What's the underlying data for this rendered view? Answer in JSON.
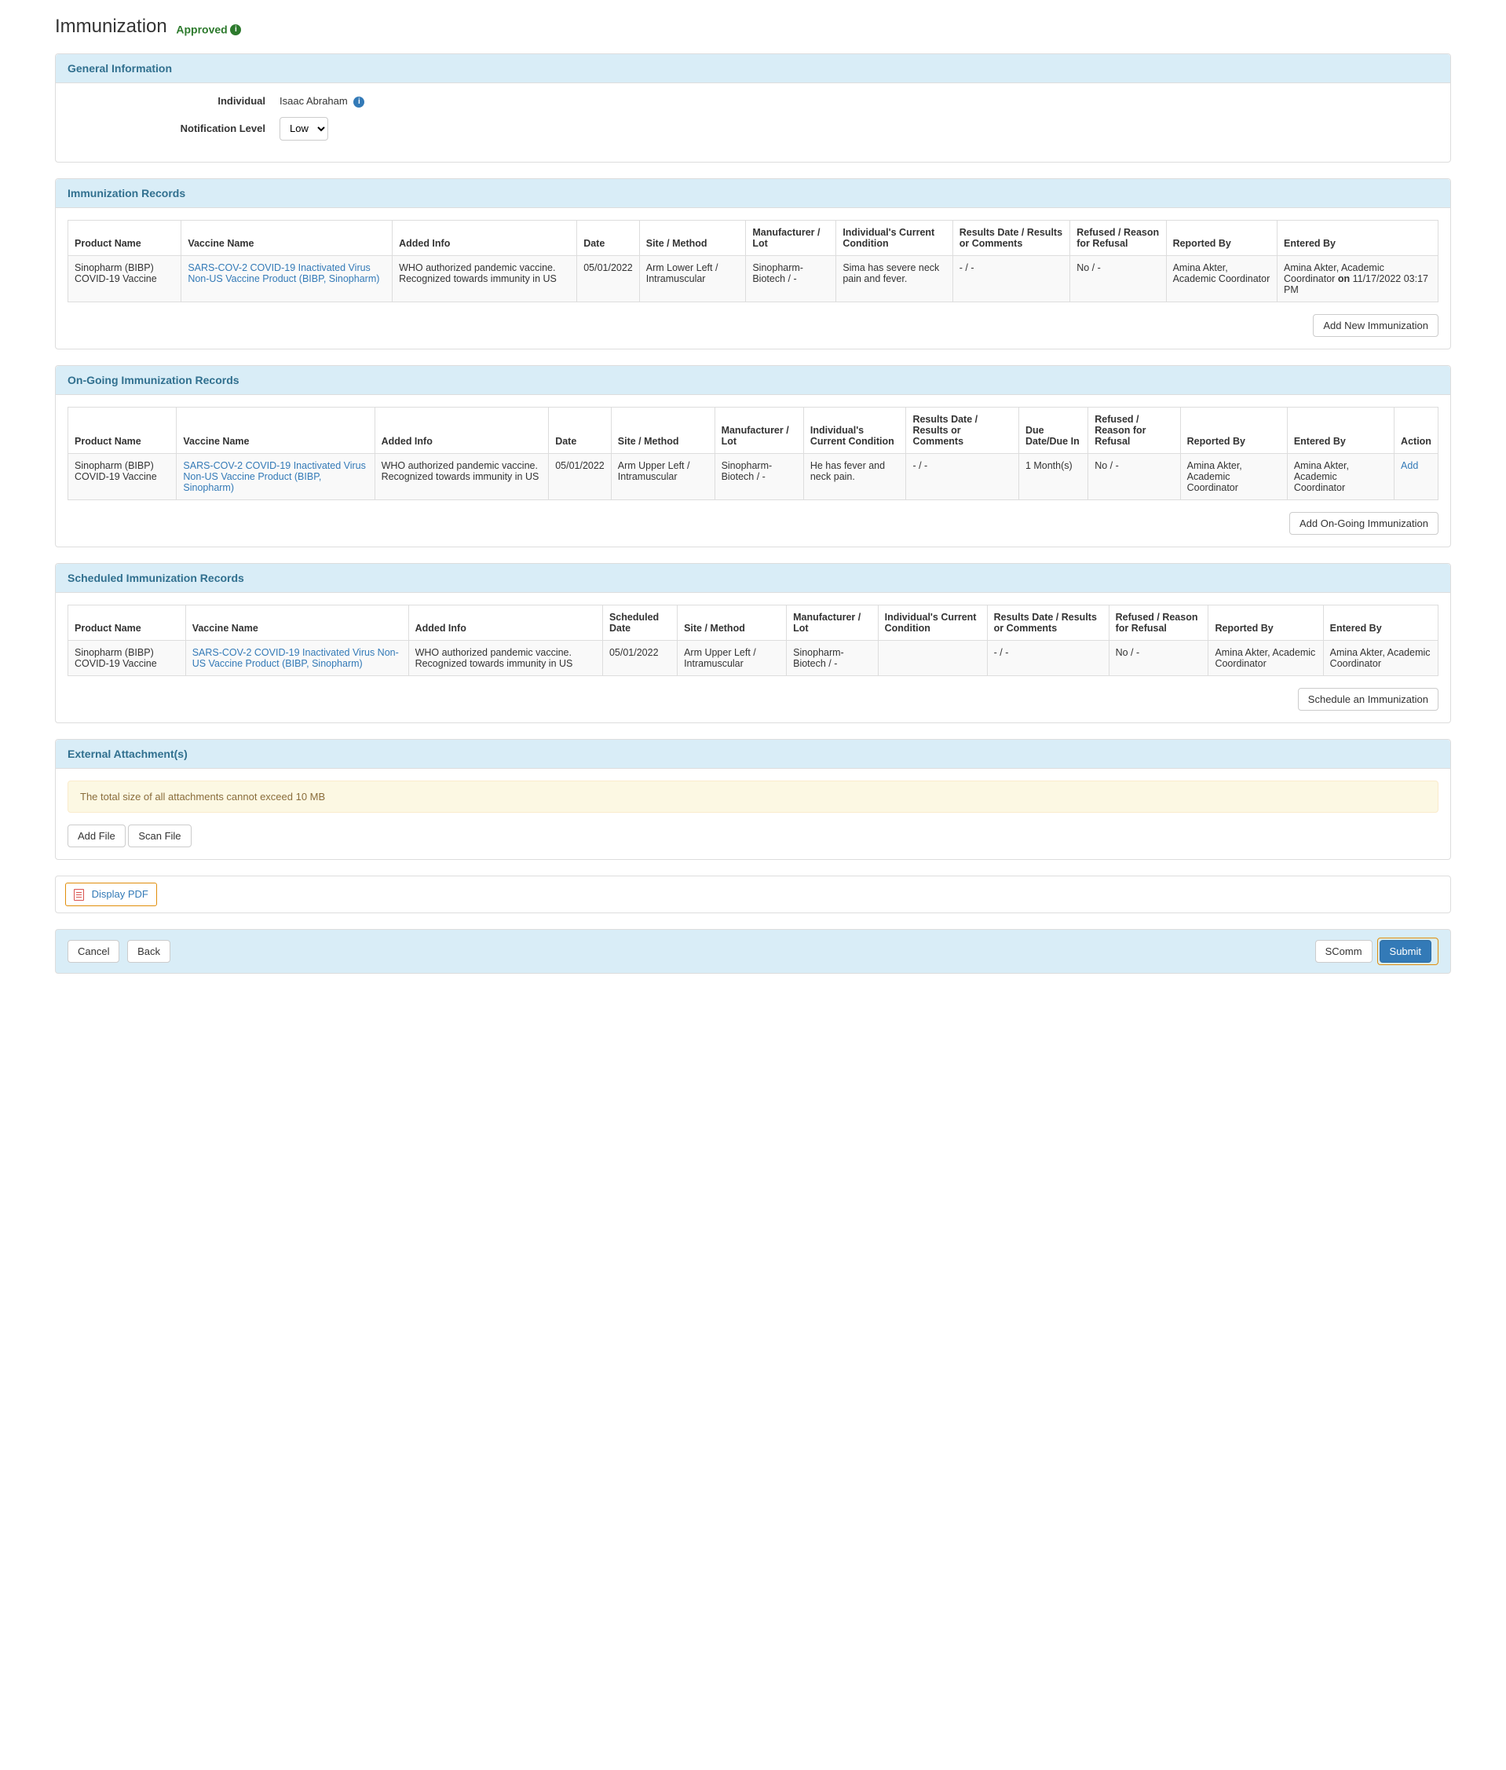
{
  "page": {
    "title": "Immunization",
    "status": "Approved"
  },
  "general": {
    "heading": "General Information",
    "individual_label": "Individual",
    "individual_name": "Isaac Abraham",
    "notification_label": "Notification Level",
    "notification_value": "Low"
  },
  "records": {
    "heading": "Immunization Records",
    "columns": [
      "Product Name",
      "Vaccine Name",
      "Added Info",
      "Date",
      "Site / Method",
      "Manufacturer / Lot",
      "Individual's Current Condition",
      "Results Date / Results or Comments",
      "Refused / Reason for Refusal",
      "Reported By",
      "Entered By"
    ],
    "row": {
      "product": "Sinopharm (BIBP) COVID-19 Vaccine",
      "vaccine": "SARS-COV-2 COVID-19 Inactivated Virus Non-US Vaccine Product (BIBP, Sinopharm)",
      "added_info": "WHO authorized pandemic vaccine. Recognized towards immunity in US",
      "date": "05/01/2022",
      "site": "Arm Lower Left / Intramuscular",
      "manufacturer": "Sinopharm-Biotech / -",
      "condition": "Sima has severe neck pain and fever.",
      "results": "- / -",
      "refused": "No / -",
      "reported_by": "Amina Akter, Academic Coordinator",
      "entered_by_name": "Amina Akter, Academic Coordinator",
      "entered_by_on": "on",
      "entered_by_ts": "11/17/2022 03:17 PM"
    },
    "add_btn": "Add New Immunization"
  },
  "ongoing": {
    "heading": "On-Going Immunization Records",
    "columns": [
      "Product Name",
      "Vaccine Name",
      "Added Info",
      "Date",
      "Site / Method",
      "Manufacturer / Lot",
      "Individual's Current Condition",
      "Results Date / Results or Comments",
      "Due Date/Due In",
      "Refused / Reason for Refusal",
      "Reported By",
      "Entered By",
      "Action"
    ],
    "row": {
      "product": "Sinopharm (BIBP) COVID-19 Vaccine",
      "vaccine": "SARS-COV-2 COVID-19 Inactivated Virus Non-US Vaccine Product (BIBP, Sinopharm)",
      "added_info": "WHO authorized pandemic vaccine. Recognized towards immunity in US",
      "date": "05/01/2022",
      "site": "Arm Upper Left / Intramuscular",
      "manufacturer": "Sinopharm-Biotech / -",
      "condition": "He has fever and neck pain.",
      "results": "- / -",
      "due": "1 Month(s)",
      "refused": "No / -",
      "reported_by": "Amina Akter, Academic Coordinator",
      "entered_by": "Amina Akter, Academic Coordinator",
      "action": "Add"
    },
    "add_btn": "Add On-Going Immunization"
  },
  "scheduled": {
    "heading": "Scheduled Immunization Records",
    "columns": [
      "Product Name",
      "Vaccine Name",
      "Added Info",
      "Scheduled Date",
      "Site / Method",
      "Manufacturer / Lot",
      "Individual's Current Condition",
      "Results Date / Results or Comments",
      "Refused / Reason for Refusal",
      "Reported By",
      "Entered By"
    ],
    "row": {
      "product": "Sinopharm (BIBP) COVID-19 Vaccine",
      "vaccine": "SARS-COV-2 COVID-19 Inactivated Virus Non-US Vaccine Product (BIBP, Sinopharm)",
      "added_info": "WHO authorized pandemic vaccine. Recognized towards immunity in US",
      "date": "05/01/2022",
      "site": "Arm Upper Left / Intramuscular",
      "manufacturer": "Sinopharm-Biotech / -",
      "condition": "",
      "results": "- / -",
      "refused": "No / -",
      "reported_by": "Amina Akter, Academic Coordinator",
      "entered_by": "Amina Akter, Academic Coordinator"
    },
    "add_btn": "Schedule an Immunization"
  },
  "attachments": {
    "heading": "External Attachment(s)",
    "notice": "The total size of all attachments cannot exceed 10 MB",
    "add_file": "Add File",
    "scan_file": "Scan File"
  },
  "display_pdf": "Display PDF",
  "footer": {
    "cancel": "Cancel",
    "back": "Back",
    "scomm": "SComm",
    "submit": "Submit"
  }
}
